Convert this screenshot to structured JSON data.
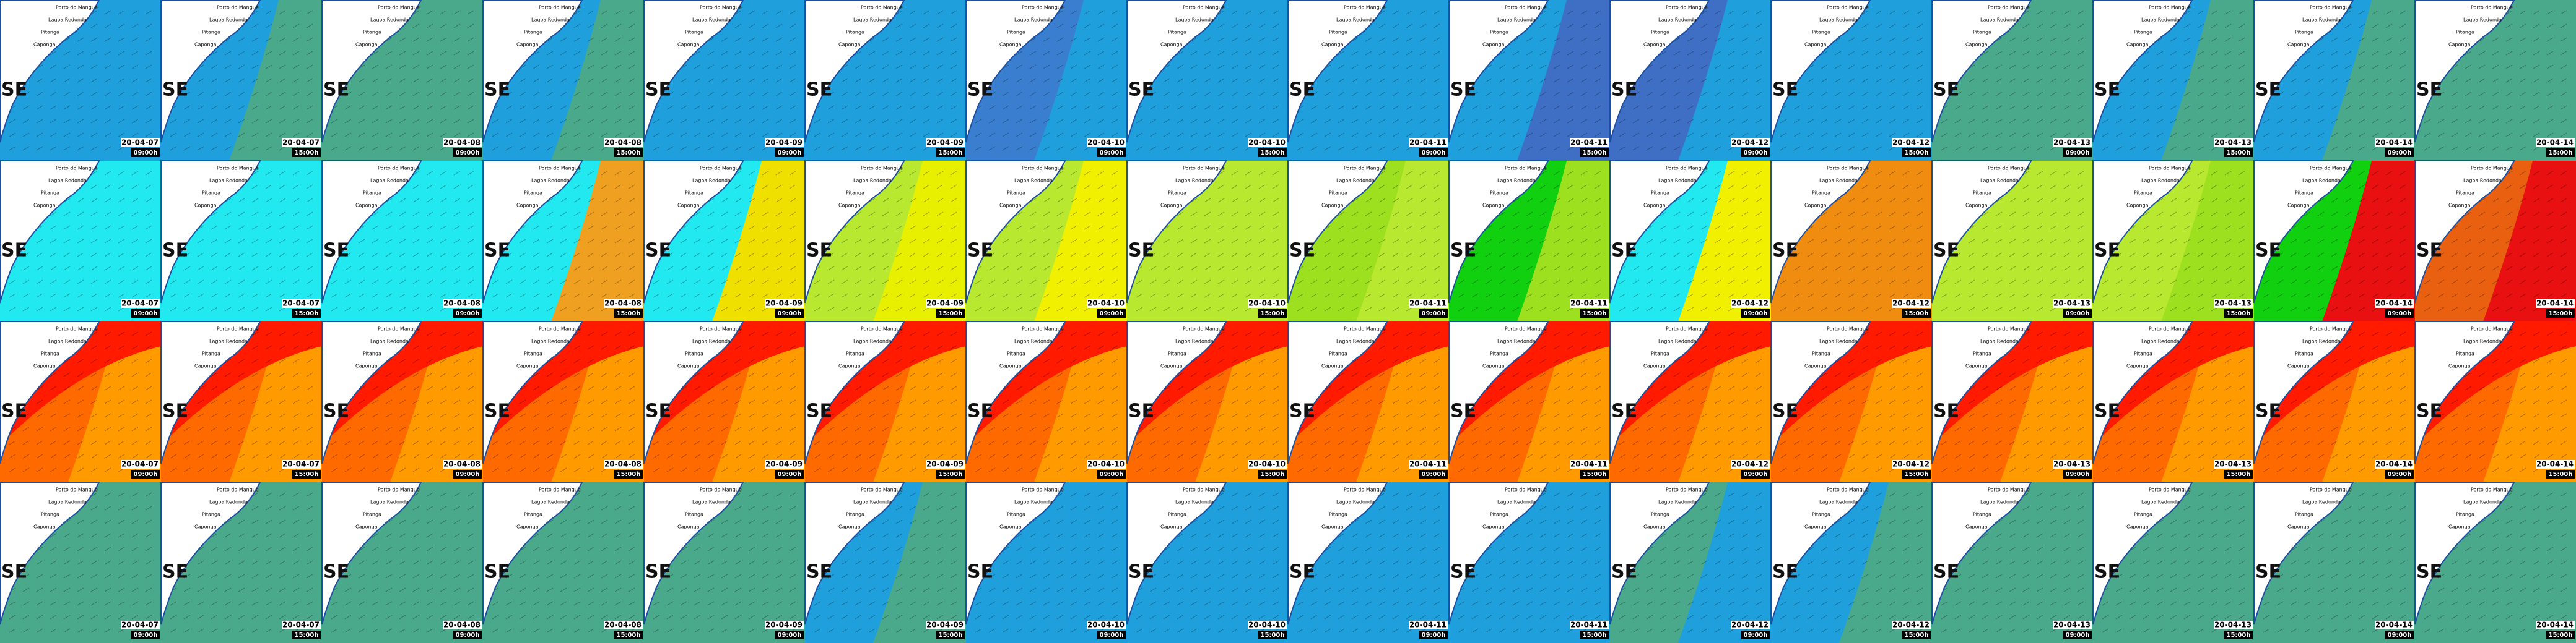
{
  "region": "SE",
  "places": [
    "Porto do Mangue",
    "Lagoa Redonda",
    "Pitanga",
    "Caponga"
  ],
  "rows": [
    {
      "tiles": [
        {
          "date": "20-04-07",
          "time": "09:00h",
          "colors": [
            "#1fa0dd",
            "#1fa0dd"
          ]
        },
        {
          "date": "20-04-07",
          "time": "15:00h",
          "colors": [
            "#1fa0dd",
            "#4aa98a"
          ]
        },
        {
          "date": "20-04-08",
          "time": "09:00h",
          "colors": [
            "#4aa98a",
            "#4aa98a"
          ]
        },
        {
          "date": "20-04-08",
          "time": "15:00h",
          "colors": [
            "#1fa0dd",
            "#4aa98a"
          ]
        },
        {
          "date": "20-04-09",
          "time": "09:00h",
          "colors": [
            "#1fa0dd",
            "#1fa0dd"
          ]
        },
        {
          "date": "20-04-09",
          "time": "15:00h",
          "colors": [
            "#1fa0dd",
            "#1fa0dd"
          ]
        },
        {
          "date": "20-04-10",
          "time": "09:00h",
          "colors": [
            "#3a7fcf",
            "#1fa0dd"
          ]
        },
        {
          "date": "20-04-10",
          "time": "15:00h",
          "colors": [
            "#1fa0dd",
            "#1fa0dd"
          ]
        },
        {
          "date": "20-04-11",
          "time": "09:00h",
          "colors": [
            "#1fa0dd",
            "#1fa0dd"
          ]
        },
        {
          "date": "20-04-11",
          "time": "15:00h",
          "colors": [
            "#1fa0dd",
            "#3f6fc4"
          ]
        },
        {
          "date": "20-04-12",
          "time": "09:00h",
          "colors": [
            "#3f6fc4",
            "#1fa0dd"
          ]
        },
        {
          "date": "20-04-12",
          "time": "15:00h",
          "colors": [
            "#1fa0dd",
            "#1fa0dd"
          ]
        },
        {
          "date": "20-04-13",
          "time": "09:00h",
          "colors": [
            "#4aa98a",
            "#4aa98a"
          ]
        },
        {
          "date": "20-04-13",
          "time": "15:00h",
          "colors": [
            "#1fa0dd",
            "#4aa98a"
          ]
        },
        {
          "date": "20-04-14",
          "time": "09:00h",
          "colors": [
            "#1fa0dd",
            "#4aa98a"
          ]
        },
        {
          "date": "20-04-14",
          "time": "15:00h",
          "colors": [
            "#4aa98a",
            "#4aa98a"
          ]
        }
      ]
    },
    {
      "tiles": [
        {
          "date": "20-04-07",
          "time": "09:00h",
          "colors": [
            "#22e8f0",
            "#22e8f0"
          ]
        },
        {
          "date": "20-04-07",
          "time": "15:00h",
          "colors": [
            "#22e8f0",
            "#22e8f0"
          ]
        },
        {
          "date": "20-04-08",
          "time": "09:00h",
          "colors": [
            "#22e8f0",
            "#22e8f0"
          ]
        },
        {
          "date": "20-04-08",
          "time": "15:00h",
          "colors": [
            "#22e8f0",
            "#f0a020"
          ]
        },
        {
          "date": "20-04-09",
          "time": "09:00h",
          "colors": [
            "#22e8f0",
            "#f0e000"
          ]
        },
        {
          "date": "20-04-09",
          "time": "15:00h",
          "colors": [
            "#b8e830",
            "#e8f000"
          ]
        },
        {
          "date": "20-04-10",
          "time": "09:00h",
          "colors": [
            "#b8e830",
            "#f0f000"
          ]
        },
        {
          "date": "20-04-10",
          "time": "15:00h",
          "colors": [
            "#b8e830",
            "#b8e830"
          ]
        },
        {
          "date": "20-04-11",
          "time": "09:00h",
          "colors": [
            "#9ce020",
            "#b8e830"
          ]
        },
        {
          "date": "20-04-11",
          "time": "15:00h",
          "colors": [
            "#10d010",
            "#9ce020"
          ]
        },
        {
          "date": "20-04-12",
          "time": "09:00h",
          "colors": [
            "#22e8f0",
            "#f0f000"
          ]
        },
        {
          "date": "20-04-12",
          "time": "15:00h",
          "colors": [
            "#f08c10",
            "#f08c10"
          ]
        },
        {
          "date": "20-04-13",
          "time": "09:00h",
          "colors": [
            "#b8e830",
            "#b8e830"
          ]
        },
        {
          "date": "20-04-13",
          "time": "15:00h",
          "colors": [
            "#b8e830",
            "#9ce020"
          ]
        },
        {
          "date": "20-04-14",
          "time": "09:00h",
          "colors": [
            "#10d010",
            "#e81010"
          ]
        },
        {
          "date": "20-04-14",
          "time": "15:00h",
          "colors": [
            "#e86010",
            "#e81010"
          ]
        }
      ]
    },
    {
      "tiles": [
        {
          "date": "20-04-07",
          "time": "09:00h",
          "colors": [
            "#ff6a00",
            "#ff9a00"
          ]
        },
        {
          "date": "20-04-07",
          "time": "15:00h",
          "colors": [
            "#ff6a00",
            "#ff9a00"
          ]
        },
        {
          "date": "20-04-08",
          "time": "09:00h",
          "colors": [
            "#ff6a00",
            "#ff9a00"
          ]
        },
        {
          "date": "20-04-08",
          "time": "15:00h",
          "colors": [
            "#ff6a00",
            "#ff9a00"
          ]
        },
        {
          "date": "20-04-09",
          "time": "09:00h",
          "colors": [
            "#ff6a00",
            "#ff9a00"
          ]
        },
        {
          "date": "20-04-09",
          "time": "15:00h",
          "colors": [
            "#ff6a00",
            "#ff9a00"
          ]
        },
        {
          "date": "20-04-10",
          "time": "09:00h",
          "colors": [
            "#ff6a00",
            "#ff9a00"
          ]
        },
        {
          "date": "20-04-10",
          "time": "15:00h",
          "colors": [
            "#ff6a00",
            "#ff9a00"
          ]
        },
        {
          "date": "20-04-11",
          "time": "09:00h",
          "colors": [
            "#ff6a00",
            "#ff9a00"
          ]
        },
        {
          "date": "20-04-11",
          "time": "15:00h",
          "colors": [
            "#ff6a00",
            "#ff9a00"
          ]
        },
        {
          "date": "20-04-12",
          "time": "09:00h",
          "colors": [
            "#ff6a00",
            "#ff9a00"
          ]
        },
        {
          "date": "20-04-12",
          "time": "15:00h",
          "colors": [
            "#ff6a00",
            "#ff9a00"
          ]
        },
        {
          "date": "20-04-13",
          "time": "09:00h",
          "colors": [
            "#ff6a00",
            "#ff9a00"
          ]
        },
        {
          "date": "20-04-13",
          "time": "15:00h",
          "colors": [
            "#ff6a00",
            "#ff9a00"
          ]
        },
        {
          "date": "20-04-14",
          "time": "09:00h",
          "colors": [
            "#ff6a00",
            "#ff9a00"
          ]
        },
        {
          "date": "20-04-14",
          "time": "15:00h",
          "colors": [
            "#ff6a00",
            "#ff9a00"
          ]
        }
      ]
    },
    {
      "tiles": [
        {
          "date": "20-04-07",
          "time": "09:00h",
          "colors": [
            "#4aa98a",
            "#4aa98a"
          ]
        },
        {
          "date": "20-04-07",
          "time": "15:00h",
          "colors": [
            "#4aa98a",
            "#4aa98a"
          ]
        },
        {
          "date": "20-04-08",
          "time": "09:00h",
          "colors": [
            "#4aa98a",
            "#4aa98a"
          ]
        },
        {
          "date": "20-04-08",
          "time": "15:00h",
          "colors": [
            "#4aa98a",
            "#4aa98a"
          ]
        },
        {
          "date": "20-04-09",
          "time": "09:00h",
          "colors": [
            "#4aa98a",
            "#4aa98a"
          ]
        },
        {
          "date": "20-04-09",
          "time": "15:00h",
          "colors": [
            "#1fa0dd",
            "#4aa98a"
          ]
        },
        {
          "date": "20-04-10",
          "time": "09:00h",
          "colors": [
            "#1fa0dd",
            "#1fa0dd"
          ]
        },
        {
          "date": "20-04-10",
          "time": "15:00h",
          "colors": [
            "#1fa0dd",
            "#1fa0dd"
          ]
        },
        {
          "date": "20-04-11",
          "time": "09:00h",
          "colors": [
            "#1fa0dd",
            "#1fa0dd"
          ]
        },
        {
          "date": "20-04-11",
          "time": "15:00h",
          "colors": [
            "#1fa0dd",
            "#1fa0dd"
          ]
        },
        {
          "date": "20-04-12",
          "time": "09:00h",
          "colors": [
            "#4aa98a",
            "#1fa0dd"
          ]
        },
        {
          "date": "20-04-12",
          "time": "15:00h",
          "colors": [
            "#1fa0dd",
            "#4aa98a"
          ]
        },
        {
          "date": "20-04-13",
          "time": "09:00h",
          "colors": [
            "#4aa98a",
            "#4aa98a"
          ]
        },
        {
          "date": "20-04-13",
          "time": "15:00h",
          "colors": [
            "#4aa98a",
            "#4aa98a"
          ]
        },
        {
          "date": "20-04-14",
          "time": "09:00h",
          "colors": [
            "#4aa98a",
            "#4aa98a"
          ]
        },
        {
          "date": "20-04-14",
          "time": "15:00h",
          "colors": [
            "#4aa98a",
            "#4aa98a"
          ]
        }
      ]
    }
  ]
}
